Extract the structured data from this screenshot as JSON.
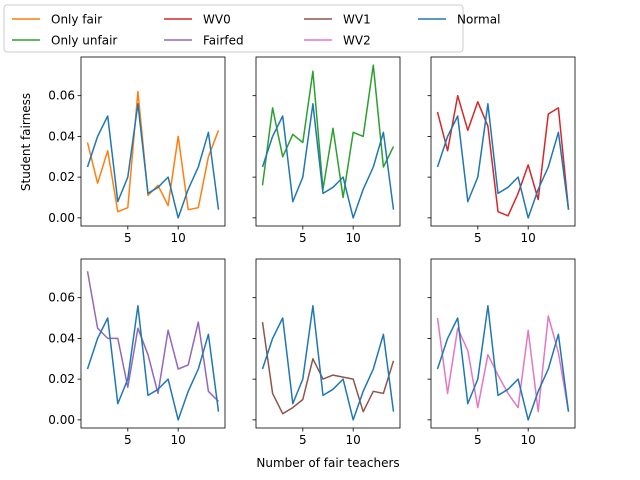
{
  "figure": {
    "xlabel": "Number of fair teachers",
    "ylabel": "Student fairness"
  },
  "legend": {
    "placement": "top-left",
    "columns": 4,
    "entries": [
      {
        "label": "Only fair",
        "color": "#ff7f0e"
      },
      {
        "label": "Only unfair",
        "color": "#2ca02c"
      },
      {
        "label": "WV0",
        "color": "#d62728"
      },
      {
        "label": "Fairfed",
        "color": "#9467bd"
      },
      {
        "label": "WV1",
        "color": "#8c564b"
      },
      {
        "label": "WV2",
        "color": "#e377c2"
      },
      {
        "label": "Normal",
        "color": "#1f77b4"
      }
    ]
  },
  "chart_data": {
    "type": "line",
    "layout": "2x3 grid, shared axes",
    "x": [
      1,
      2,
      3,
      4,
      5,
      6,
      7,
      8,
      9,
      10,
      11,
      12,
      13,
      14
    ],
    "xticks": [
      5,
      10
    ],
    "yticks": [
      "0.00",
      "0.02",
      "0.04",
      "0.06"
    ],
    "xlim": [
      0.35,
      14.65
    ],
    "ylim": [
      -0.004,
      0.079
    ],
    "normal": {
      "name": "Normal",
      "color": "#1f77b4",
      "values": [
        0.025,
        0.04,
        0.05,
        0.008,
        0.02,
        0.056,
        0.012,
        0.015,
        0.02,
        0.0,
        0.014,
        0.025,
        0.042,
        0.004
      ]
    },
    "panels": [
      {
        "series": {
          "name": "Only fair",
          "color": "#ff7f0e",
          "values": [
            0.037,
            0.017,
            0.033,
            0.003,
            0.005,
            0.062,
            0.011,
            0.016,
            0.006,
            0.04,
            0.004,
            0.005,
            0.03,
            0.043
          ]
        }
      },
      {
        "series": {
          "name": "Only unfair",
          "color": "#2ca02c",
          "values": [
            0.016,
            0.054,
            0.03,
            0.041,
            0.037,
            0.072,
            0.014,
            0.044,
            0.01,
            0.042,
            0.04,
            0.075,
            0.025,
            0.035
          ]
        }
      },
      {
        "series": {
          "name": "WV0",
          "color": "#d62728",
          "values": [
            0.052,
            0.033,
            0.06,
            0.043,
            0.057,
            0.045,
            0.003,
            0.001,
            0.012,
            0.026,
            0.009,
            0.051,
            0.054,
            0.004
          ]
        }
      },
      {
        "series": {
          "name": "Fairfed",
          "color": "#9467bd",
          "values": [
            0.073,
            0.045,
            0.04,
            0.04,
            0.016,
            0.045,
            0.032,
            0.013,
            0.044,
            0.025,
            0.027,
            0.048,
            0.014,
            0.009
          ]
        }
      },
      {
        "series": {
          "name": "WV1",
          "color": "#8c564b",
          "values": [
            0.048,
            0.013,
            0.003,
            0.006,
            0.01,
            0.03,
            0.02,
            0.022,
            0.021,
            0.02,
            0.004,
            0.014,
            0.013,
            0.029
          ]
        }
      },
      {
        "series": {
          "name": "WV2",
          "color": "#e377c2",
          "values": [
            0.05,
            0.013,
            0.045,
            0.034,
            0.006,
            0.032,
            0.022,
            0.013,
            0.006,
            0.044,
            0.004,
            0.051,
            0.033,
            0.004
          ]
        }
      }
    ]
  }
}
